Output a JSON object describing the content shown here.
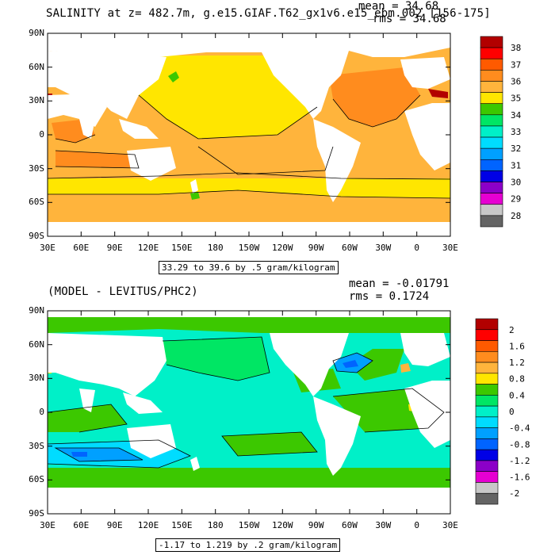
{
  "panels": [
    {
      "title": "SALINITY at z= 482.7m, g.e15.GIAF.T62_gx1v6.e15_ebm.002 [156-175]",
      "mean_label": "mean = 34.68",
      "rms_label": "rms = 34.68",
      "range_label": "33.29 to 39.6 by .5 gram/kilogram",
      "lat_labels": [
        "90N",
        "60N",
        "30N",
        "0",
        "30S",
        "60S",
        "90S"
      ],
      "lon_labels": [
        "30E",
        "60E",
        "90E",
        "120E",
        "150E",
        "180",
        "150W",
        "120W",
        "90W",
        "60W",
        "30W",
        "0",
        "30E"
      ],
      "colorbar": {
        "labels": [
          "38",
          "37",
          "36",
          "35",
          "34",
          "33",
          "32",
          "31",
          "30",
          "29",
          "28"
        ],
        "colors": [
          "#b20000",
          "#ff0000",
          "#ff5a00",
          "#ff8c1e",
          "#ffb43c",
          "#ffe600",
          "#3cc800",
          "#00e664",
          "#00f0c8",
          "#00dcff",
          "#00a0ff",
          "#0064ff",
          "#0000e6",
          "#8c00c8",
          "#e600d2",
          "#c8c8c8",
          "#646464"
        ]
      }
    },
    {
      "title": "(MODEL - LEVITUS/PHC2)",
      "mean_label": "mean = -0.01791",
      "rms_label": "rms = 0.1724",
      "range_label": "-1.17 to 1.219 by .2 gram/kilogram",
      "lat_labels": [
        "90N",
        "60N",
        "30N",
        "0",
        "30S",
        "60S",
        "90S"
      ],
      "lon_labels": [
        "30E",
        "60E",
        "90E",
        "120E",
        "150E",
        "180",
        "150W",
        "120W",
        "90W",
        "60W",
        "30W",
        "0",
        "30E"
      ],
      "colorbar": {
        "labels": [
          "2",
          "1.6",
          "1.2",
          "0.8",
          "0.4",
          "0",
          "-0.4",
          "-0.8",
          "-1.2",
          "-1.6",
          "-2"
        ],
        "colors": [
          "#b20000",
          "#ff0000",
          "#ff5a00",
          "#ff8c1e",
          "#ffb43c",
          "#ffe600",
          "#3cc800",
          "#00e664",
          "#00f0c8",
          "#00dcff",
          "#00a0ff",
          "#0064ff",
          "#0000e6",
          "#8c00c8",
          "#e600d2",
          "#c8c8c8",
          "#646464"
        ]
      }
    }
  ]
}
